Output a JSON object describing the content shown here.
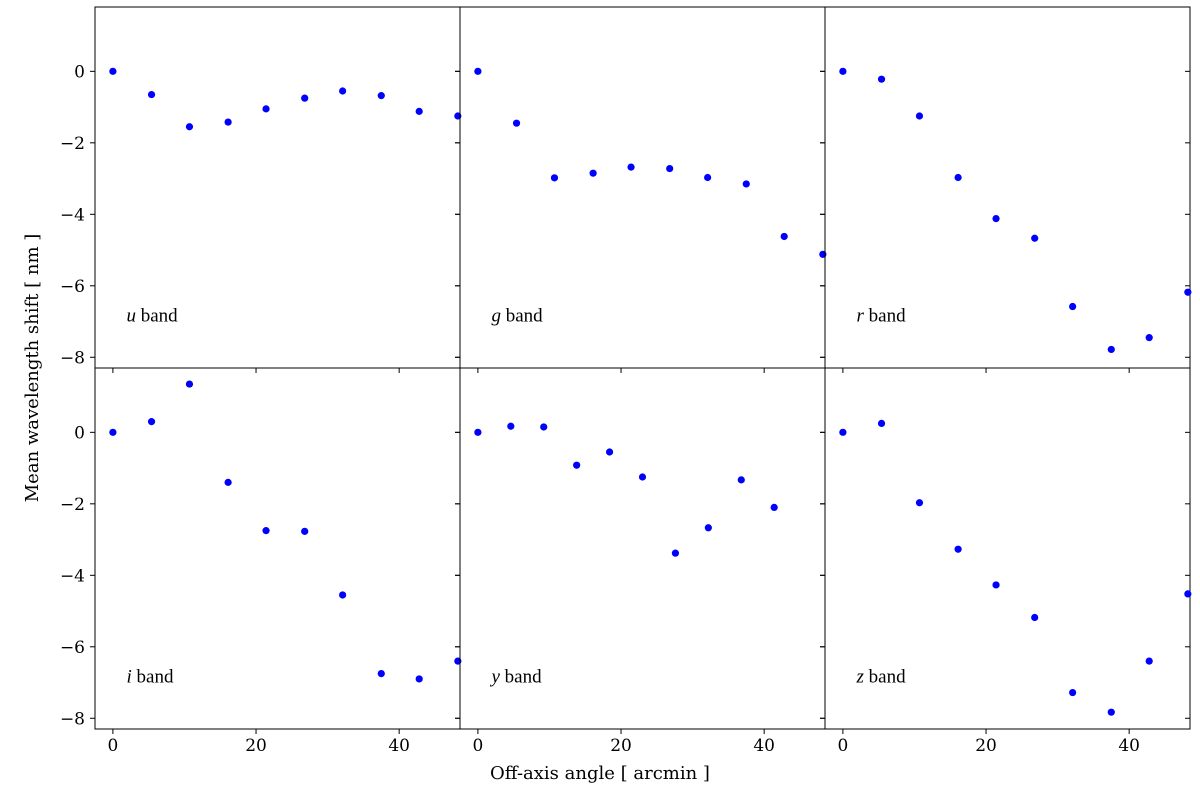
{
  "figure": {
    "xlabel": "Off-axis angle [ arcmin ]",
    "ylabel": "Mean wavelength shift [ nm ]",
    "marker_color": "#0000ff"
  },
  "chart_data": [
    {
      "type": "scatter",
      "annotation": {
        "italic": "u",
        "text": " band"
      },
      "x": [
        0,
        5.4,
        10.7,
        16.1,
        21.4,
        26.8,
        32.1,
        37.5,
        42.8,
        48.2
      ],
      "y": [
        0,
        -0.65,
        -1.55,
        -1.42,
        -1.05,
        -0.75,
        -0.55,
        -0.68,
        -1.12,
        -1.25
      ],
      "xlim": [
        -2.5,
        48.5
      ],
      "ylim": [
        -8.3,
        1.8
      ]
    },
    {
      "type": "scatter",
      "annotation": {
        "italic": "g",
        "text": " band"
      },
      "x": [
        0,
        5.4,
        10.7,
        16.1,
        21.4,
        26.8,
        32.1,
        37.5,
        42.8,
        48.2
      ],
      "y": [
        0,
        -1.45,
        -2.98,
        -2.85,
        -2.68,
        -2.72,
        -2.97,
        -3.15,
        -4.62,
        -5.12
      ],
      "xlim": [
        -2.5,
        48.5
      ],
      "ylim": [
        -8.3,
        1.8
      ]
    },
    {
      "type": "scatter",
      "annotation": {
        "italic": "r",
        "text": " band"
      },
      "x": [
        0,
        5.4,
        10.7,
        16.1,
        21.4,
        26.8,
        32.1,
        37.5,
        42.8,
        48.2
      ],
      "y": [
        0,
        -0.22,
        -1.25,
        -2.97,
        -4.12,
        -4.67,
        -6.58,
        -7.78,
        -7.45,
        -6.18
      ],
      "xlim": [
        -2.5,
        48.5
      ],
      "ylim": [
        -8.3,
        1.8
      ]
    },
    {
      "type": "scatter",
      "annotation": {
        "italic": "i",
        "text": " band"
      },
      "x": [
        0,
        5.4,
        10.7,
        16.1,
        21.4,
        26.8,
        32.1,
        37.5,
        42.8,
        48.2
      ],
      "y": [
        0,
        0.3,
        1.35,
        -1.4,
        -2.75,
        -2.77,
        -4.55,
        -6.75,
        -6.9,
        -6.4
      ],
      "xlim": [
        -2.5,
        48.5
      ],
      "ylim": [
        -8.3,
        1.8
      ]
    },
    {
      "type": "scatter",
      "annotation": {
        "italic": "y",
        "text": " band"
      },
      "x": [
        0,
        4.6,
        9.2,
        13.8,
        18.4,
        23.0,
        27.6,
        32.2,
        36.8,
        41.4
      ],
      "y": [
        0,
        0.17,
        0.15,
        -0.92,
        -0.55,
        -1.25,
        -3.38,
        -2.67,
        -1.33,
        -2.1
      ],
      "xlim": [
        -2.5,
        48.5
      ],
      "ylim": [
        -8.3,
        1.8
      ]
    },
    {
      "type": "scatter",
      "annotation": {
        "italic": "z",
        "text": " band"
      },
      "x": [
        0,
        5.4,
        10.7,
        16.1,
        21.4,
        26.8,
        32.1,
        37.5,
        42.8,
        48.2
      ],
      "y": [
        0,
        0.25,
        -1.97,
        -3.27,
        -4.27,
        -5.18,
        -7.28,
        -7.83,
        -6.4,
        -4.52
      ],
      "xlim": [
        -2.5,
        48.5
      ],
      "ylim": [
        -8.3,
        1.8
      ]
    }
  ],
  "axes": {
    "xticks": [
      0,
      20,
      40
    ],
    "xtick_labels": [
      "0",
      "20",
      "40"
    ],
    "yticks": [
      0,
      -2,
      -4,
      -6,
      -8
    ],
    "ytick_labels": [
      "0",
      "−2",
      "−4",
      "−6",
      "−8"
    ]
  }
}
